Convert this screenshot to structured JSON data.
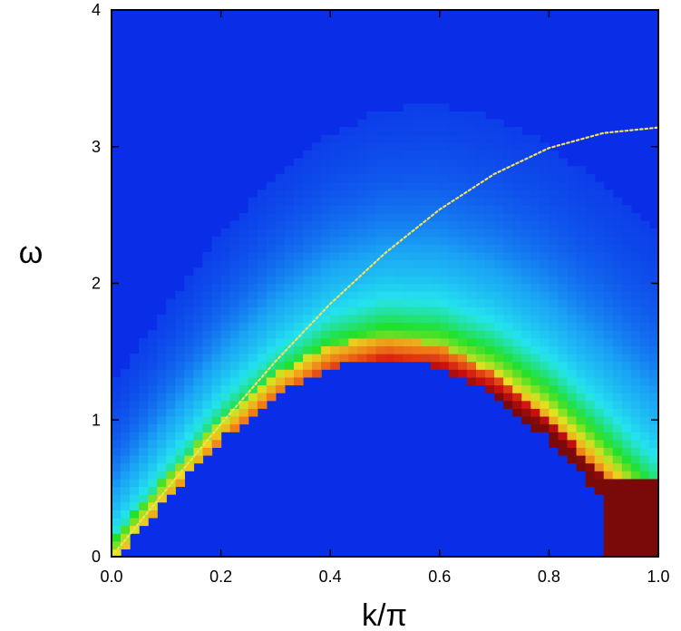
{
  "chart_data": {
    "type": "heatmap",
    "title": "",
    "xlabel": "k/π",
    "ylabel": "ω",
    "xlim": [
      0.0,
      1.0
    ],
    "ylim": [
      0,
      4
    ],
    "x_ticks": [
      "0.0",
      "0.2",
      "0.4",
      "0.6",
      "0.8",
      "1.0"
    ],
    "y_ticks": [
      "0",
      "1",
      "2",
      "3",
      "4"
    ],
    "grid": false,
    "colormap": [
      "#0a2ee8",
      "#1aa3f5",
      "#24e3ef",
      "#22e02a",
      "#e8e020",
      "#f07a18",
      "#d01010",
      "#7a0a0a"
    ],
    "background_color": "#0a2ee8",
    "spectral_weight": {
      "description_of_ridge": "low-energy continuum lower edge",
      "lower_edge_points": [
        {
          "x": 0.0,
          "y": 0.0
        },
        {
          "x": 0.1,
          "y": 0.47
        },
        {
          "x": 0.2,
          "y": 0.9
        },
        {
          "x": 0.3,
          "y": 1.22
        },
        {
          "x": 0.4,
          "y": 1.43
        },
        {
          "x": 0.5,
          "y": 1.5
        },
        {
          "x": 0.6,
          "y": 1.43
        },
        {
          "x": 0.7,
          "y": 1.22
        },
        {
          "x": 0.8,
          "y": 0.9
        },
        {
          "x": 0.9,
          "y": 0.47
        },
        {
          "x": 1.0,
          "y": 0.0
        }
      ],
      "peak_intensity_region": {
        "x": [
          0.92,
          1.0
        ],
        "y": [
          0.0,
          0.5
        ]
      }
    },
    "series": [
      {
        "name": "",
        "style": "dotted",
        "color": "#f0e060",
        "x": [
          0.0,
          0.1,
          0.2,
          0.3,
          0.4,
          0.5,
          0.6,
          0.7,
          0.8,
          0.9,
          1.0
        ],
        "y": [
          0.0,
          0.49,
          0.97,
          1.43,
          1.85,
          2.22,
          2.54,
          2.8,
          2.99,
          3.1,
          3.14
        ]
      }
    ]
  }
}
